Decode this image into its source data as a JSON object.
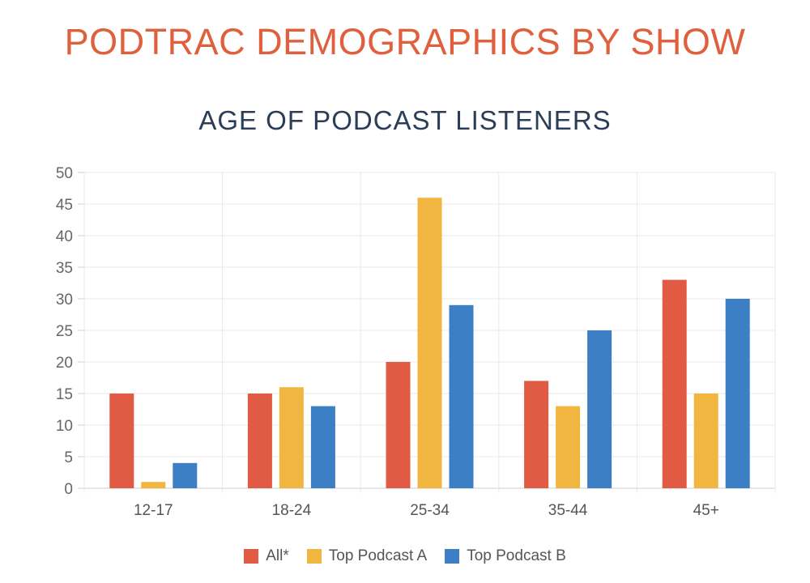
{
  "header": {
    "title": "PODTRAC DEMOGRAPHICS BY SHOW"
  },
  "chart_data": {
    "type": "bar",
    "title": "AGE OF PODCAST LISTENERS",
    "xlabel": "",
    "ylabel": "",
    "categories": [
      "12-17",
      "18-24",
      "25-34",
      "35-44",
      "45+"
    ],
    "ylim": [
      0,
      50
    ],
    "yticks": [
      0,
      5,
      10,
      15,
      20,
      25,
      30,
      35,
      40,
      45,
      50
    ],
    "grid": true,
    "legend_position": "bottom",
    "series": [
      {
        "name": "All*",
        "color": "#e05a44",
        "values": [
          15,
          15,
          20,
          17,
          33
        ]
      },
      {
        "name": "Top Podcast A",
        "color": "#f0b640",
        "values": [
          1,
          16,
          46,
          13,
          15
        ]
      },
      {
        "name": "Top Podcast B",
        "color": "#3c7fc4",
        "values": [
          4,
          13,
          29,
          25,
          30
        ]
      }
    ]
  }
}
